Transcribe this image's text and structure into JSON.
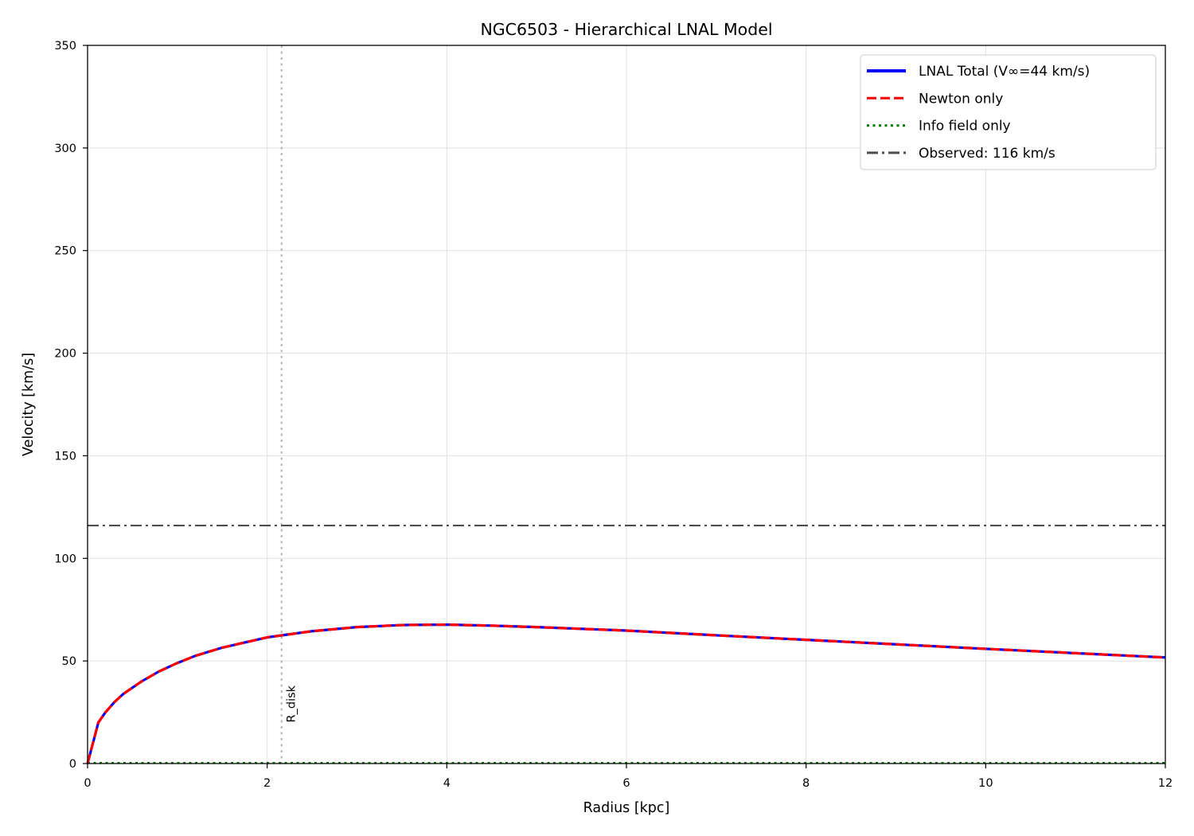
{
  "chart_data": {
    "type": "line",
    "title": "NGC6503 - Hierarchical LNAL Model",
    "xlabel": "Radius [kpc]",
    "ylabel": "Velocity [km/s]",
    "xlim": [
      0,
      12
    ],
    "ylim": [
      0,
      350
    ],
    "xticks": [
      0,
      2,
      4,
      6,
      8,
      10,
      12
    ],
    "yticks": [
      0,
      50,
      100,
      150,
      200,
      250,
      300,
      350
    ],
    "grid": true,
    "legend_position": "top-right",
    "series": [
      {
        "name": "LNAL Total (V∞=44 km/s)",
        "color": "#0000ff",
        "style": "solid",
        "x": [
          0.0,
          0.12,
          0.2,
          0.3,
          0.4,
          0.5,
          0.6,
          0.7,
          0.8,
          1.0,
          1.2,
          1.5,
          1.8,
          2.0,
          2.5,
          3.0,
          3.5,
          4.0,
          4.5,
          5.0,
          6.0,
          7.0,
          8.0,
          9.0,
          10.0,
          11.0,
          12.0
        ],
        "y": [
          0,
          20,
          25,
          30,
          34,
          37,
          40,
          42.5,
          45,
          49,
          52.5,
          56.5,
          59.5,
          61.5,
          64.5,
          66.5,
          67.5,
          67.7,
          67.2,
          66.5,
          64.8,
          62.5,
          60.3,
          58.1,
          55.9,
          53.8,
          51.7
        ]
      },
      {
        "name": "Newton only",
        "color": "#ff0000",
        "style": "dashed",
        "x": [
          0.0,
          0.12,
          0.2,
          0.3,
          0.4,
          0.5,
          0.6,
          0.7,
          0.8,
          1.0,
          1.2,
          1.5,
          1.8,
          2.0,
          2.5,
          3.0,
          3.5,
          4.0,
          4.5,
          5.0,
          6.0,
          7.0,
          8.0,
          9.0,
          10.0,
          11.0,
          12.0
        ],
        "y": [
          0,
          20,
          25,
          30,
          34,
          37,
          40,
          42.5,
          45,
          49,
          52.5,
          56.5,
          59.5,
          61.5,
          64.5,
          66.5,
          67.5,
          67.7,
          67.2,
          66.5,
          64.8,
          62.5,
          60.3,
          58.1,
          55.9,
          53.8,
          51.7
        ]
      },
      {
        "name": "Info field only",
        "color": "#008000",
        "style": "dotted",
        "x": [
          0,
          12
        ],
        "y": [
          0.3,
          0.3
        ]
      },
      {
        "name": "Observed: 116 km/s",
        "color": "#4d4d4d",
        "style": "dashdot",
        "x": [
          0,
          12
        ],
        "y": [
          116,
          116
        ]
      }
    ],
    "annotations": [
      {
        "text": "R_disk",
        "x": 2.16,
        "y": 20,
        "vline_color": "#b3b3b3",
        "vline_style": "dotted"
      }
    ]
  }
}
